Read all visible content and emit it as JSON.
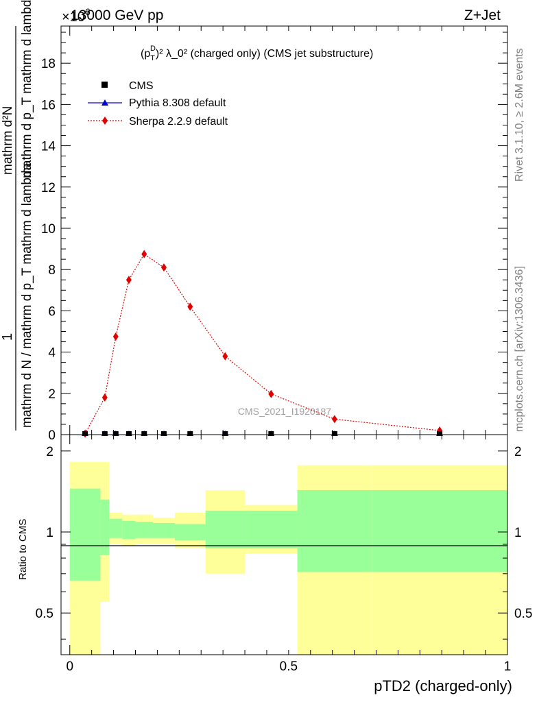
{
  "header": {
    "left": "13000 GeV pp",
    "right": "Z+Jet",
    "exponent_label": "×10",
    "exponent_value": "6"
  },
  "side_texts": {
    "rivet": "Rivet 3.1.10, ≥ 2.6M events",
    "mcplots": "mcplots.cern.ch [arXiv:1306.3436]"
  },
  "main_plot": {
    "title_base": "(p",
    "title_sub": "T",
    "title_sup": "D",
    "title_rest": ")² λ_0² (charged only) (CMS jet substructure)",
    "ylabel_top": "1",
    "ylabel_bottom": "mathrm d N / mathrm d p_T mathrm d lambda",
    "ylabel_top2": "mathrm d²N",
    "ylabel_bottom2": "mathrm d p_T mathrm d lambda",
    "watermark": "CMS_2021_I1920187",
    "y_ticks": [
      "0",
      "2",
      "4",
      "6",
      "8",
      "10",
      "12",
      "14",
      "16",
      "18"
    ]
  },
  "legend": {
    "items": [
      {
        "label": "CMS",
        "color": "#000000",
        "marker": "square"
      },
      {
        "label": "Pythia 8.308 default",
        "color": "#0000cc",
        "marker": "triangle"
      },
      {
        "label": "Sherpa 2.2.9 default",
        "color": "#e00000",
        "marker": "diamond"
      }
    ]
  },
  "ratio_plot": {
    "ylabel": "Ratio to CMS",
    "y_ticks": [
      "0.5",
      "1",
      "2"
    ],
    "x_ticks": [
      "0",
      "0.5",
      "1"
    ],
    "xlabel": "pTD2 (charged-only)"
  },
  "chart_data": {
    "type": "line",
    "x_label": "pTD2 (charged-only)",
    "y_scale_factor": 1000000,
    "ylim": [
      0,
      19.8
    ],
    "xlim": [
      -0.02,
      1.0
    ],
    "series": [
      {
        "name": "CMS",
        "x": [
          0.035,
          0.08,
          0.105,
          0.135,
          0.17,
          0.215,
          0.275,
          0.355,
          0.46,
          0.605,
          0.845
        ],
        "y": [
          0,
          0,
          0,
          0,
          0,
          0,
          0,
          0,
          0,
          0,
          0
        ]
      },
      {
        "name": "Pythia 8.308 default",
        "x": [
          0.035,
          0.08,
          0.105,
          0.135,
          0.17,
          0.215,
          0.275,
          0.355,
          0.46,
          0.605,
          0.845
        ],
        "y": [
          0,
          0,
          0,
          0,
          0,
          0,
          0,
          0,
          0,
          0,
          0
        ]
      },
      {
        "name": "Sherpa 2.2.9 default",
        "x": [
          0.035,
          0.08,
          0.105,
          0.135,
          0.17,
          0.215,
          0.275,
          0.355,
          0.46,
          0.605,
          0.845
        ],
        "y": [
          0.05,
          1.8,
          4.75,
          7.5,
          8.75,
          8.1,
          6.2,
          3.8,
          1.97,
          0.75,
          0.2
        ]
      }
    ],
    "ratio": {
      "ylim_display": [
        0.35,
        2.3
      ],
      "scale": "log",
      "bin_edges": [
        0.0,
        0.07,
        0.09,
        0.12,
        0.15,
        0.19,
        0.24,
        0.31,
        0.4,
        0.52,
        0.69,
        1.0
      ],
      "band_inner": [
        [
          0.66,
          1.45
        ],
        [
          0.82,
          1.32
        ],
        [
          0.95,
          1.12
        ],
        [
          0.94,
          1.1
        ],
        [
          0.95,
          1.09
        ],
        [
          0.95,
          1.08
        ],
        [
          0.93,
          1.07
        ],
        [
          0.87,
          1.2
        ],
        [
          0.87,
          1.2
        ],
        [
          0.71,
          1.43
        ],
        [
          0.71,
          1.43
        ]
      ],
      "band_outer": [
        [
          0.35,
          1.82
        ],
        [
          0.55,
          1.82
        ],
        [
          0.9,
          1.18
        ],
        [
          0.89,
          1.16
        ],
        [
          0.9,
          1.16
        ],
        [
          0.9,
          1.13
        ],
        [
          0.87,
          1.18
        ],
        [
          0.7,
          1.43
        ],
        [
          0.83,
          1.26
        ],
        [
          0.35,
          1.77
        ],
        [
          0.35,
          1.77
        ]
      ],
      "band_colors": {
        "inner": "#99ff99",
        "outer": "#ffff99"
      }
    }
  }
}
